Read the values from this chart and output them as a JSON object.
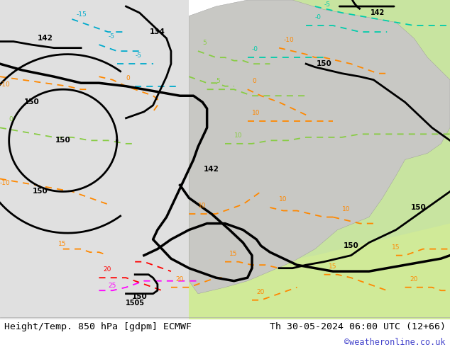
{
  "title_left": "Height/Temp. 850 hPa [gdpm] ECMWF",
  "title_right": "Th 30-05-2024 06:00 UTC (12+66)",
  "credit": "©weatheronline.co.uk",
  "figsize": [
    6.34,
    4.9
  ],
  "dpi": 100,
  "bg_color": "#f0f0f0",
  "map_bg_light_green": "#c8e6a0",
  "map_bg_mid_green": "#a8d878",
  "map_bg_gray": "#c8c8c8",
  "land_color": "#d8d8d8",
  "sea_color": "#e8e8e8",
  "title_fontsize": 9,
  "credit_color": "#4444cc",
  "bottom_bar_color": "#ffffff",
  "contour_black_color": "#000000",
  "contour_orange_color": "#ff8800",
  "contour_red_color": "#ff0000",
  "contour_magenta_color": "#ff00ff",
  "contour_green_color": "#88cc44",
  "contour_cyan_color": "#00aacc",
  "contour_teal_color": "#00ccaa"
}
